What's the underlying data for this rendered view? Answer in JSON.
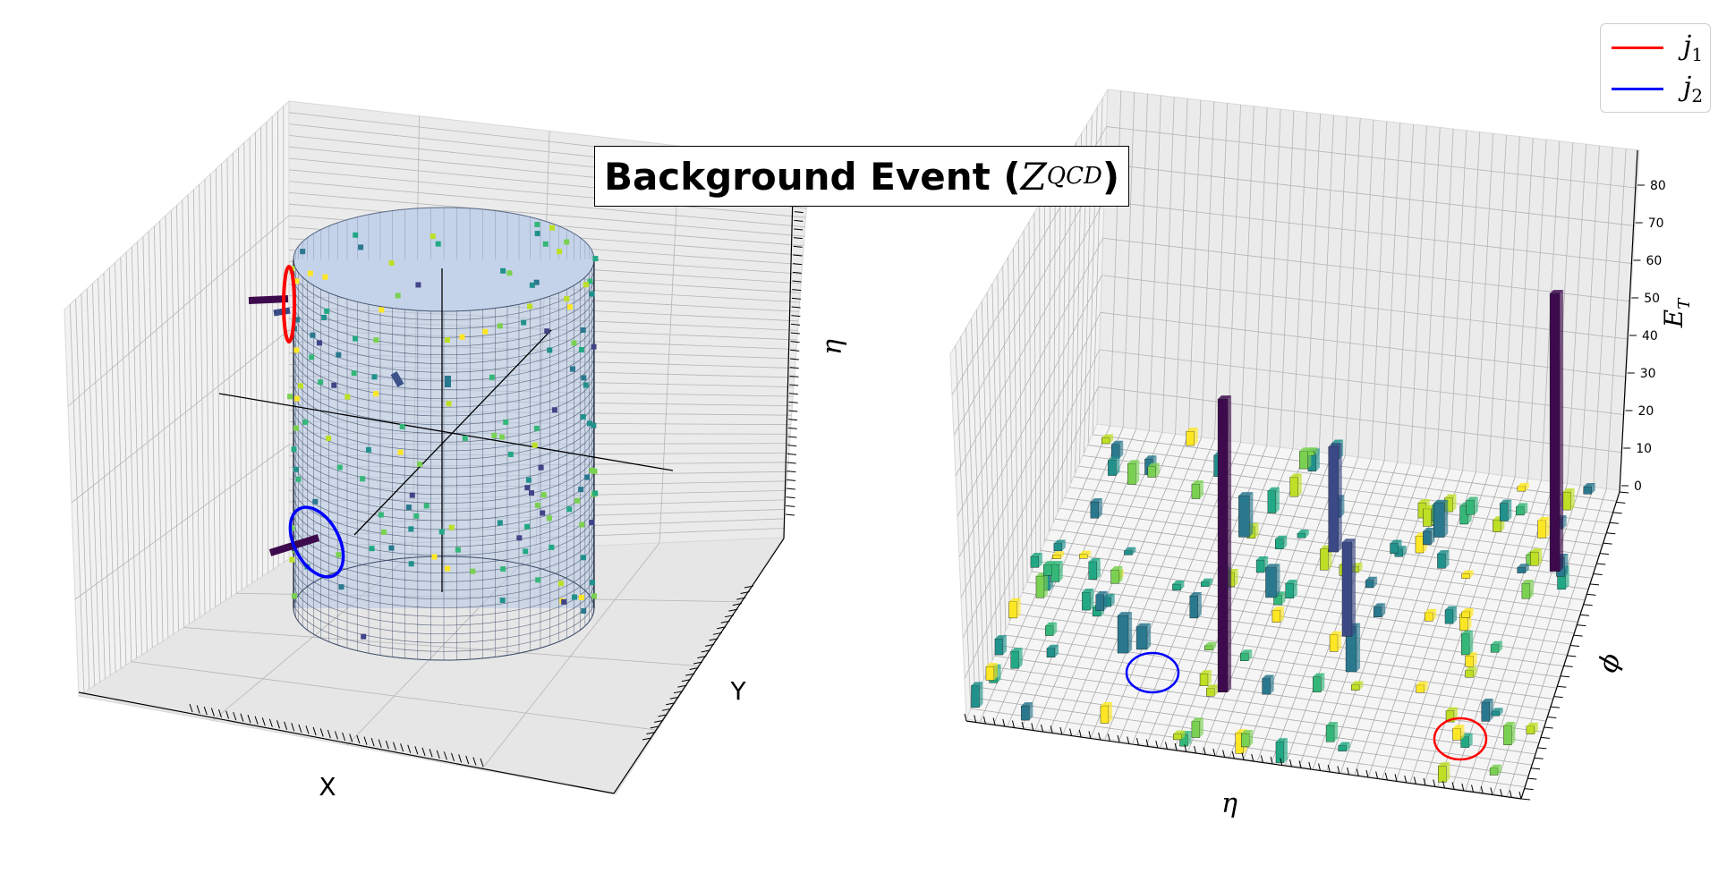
{
  "title": {
    "prefix": "Background Event (",
    "symbol": "Z",
    "subscript": "QCD",
    "suffix": ")"
  },
  "legend": {
    "items": [
      {
        "symbol": "j",
        "subscript": "1",
        "color": "#ff0000"
      },
      {
        "symbol": "j",
        "subscript": "2",
        "color": "#0000ff"
      }
    ]
  },
  "left_plot": {
    "xlabel": "X",
    "ylabel": "Y",
    "zlabel": "η",
    "cylinder_color": "#b0c4de"
  },
  "right_plot": {
    "xlabel": "η",
    "ylabel": "ϕ",
    "zlabel_symbol": "E",
    "zlabel_sub": "T",
    "zticks": [
      "0",
      "10",
      "20",
      "30",
      "40",
      "50",
      "60",
      "70",
      "80"
    ]
  },
  "chart_data": [
    {
      "type": "scatter",
      "description_kind": "3d-cylinder-event-display",
      "xlabel": "X",
      "ylabel": "Y",
      "zlabel": "η",
      "grid": true,
      "jets": [
        {
          "name": "j1",
          "color": "#ff0000"
        },
        {
          "name": "j2",
          "color": "#0000ff"
        }
      ]
    },
    {
      "type": "bar",
      "description_kind": "3d-lego-plot",
      "xlabel": "η",
      "ylabel": "ϕ",
      "zlabel": "E_T",
      "zlim": [
        0,
        88
      ],
      "zticks": [
        0,
        10,
        20,
        30,
        40,
        50,
        60,
        70,
        80
      ],
      "grid": true,
      "legend_position": "top-right",
      "tall_towers_ET": [
        78,
        74,
        25,
        28
      ],
      "jets": [
        {
          "name": "j1",
          "color": "#ff0000"
        },
        {
          "name": "j2",
          "color": "#0000ff"
        }
      ]
    }
  ]
}
